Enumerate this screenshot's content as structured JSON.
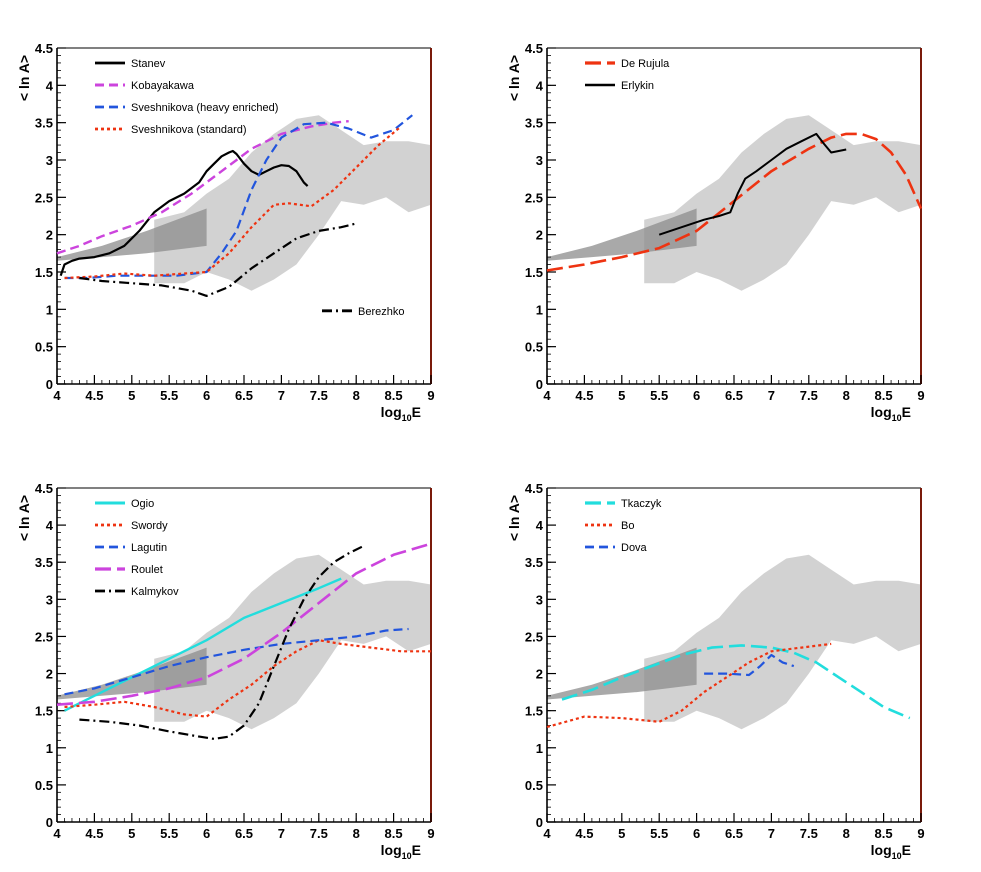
{
  "figure": {
    "panel_count": 4
  },
  "chart_data": [
    {
      "type": "line",
      "panel": "top-left",
      "xlabel_main": "log",
      "xlabel_sub": "10",
      "xlabel_tail": "E",
      "ylabel": "< ln A>",
      "xlim": [
        4,
        9
      ],
      "ylim": [
        0,
        4.5
      ],
      "xticks": [
        "4",
        "4.5",
        "5",
        "5.5",
        "6",
        "6.5",
        "7",
        "7.5",
        "8",
        "8.5",
        "9"
      ],
      "yticks": [
        "0",
        "0.5",
        "1",
        "1.5",
        "2",
        "2.5",
        "3",
        "3.5",
        "4",
        "4.5"
      ],
      "legend_position": "top-left",
      "series": [
        {
          "name": "Stanev",
          "color": "#000000",
          "style": "solid",
          "width": 2.2,
          "x": [
            4.05,
            4.1,
            4.2,
            4.3,
            4.5,
            4.7,
            4.9,
            5.1,
            5.3,
            5.5,
            5.7,
            5.9,
            6.0,
            6.1,
            6.2,
            6.3,
            6.35,
            6.4,
            6.5,
            6.6,
            6.7,
            6.8,
            6.9,
            7.0,
            7.1,
            7.2,
            7.3,
            7.35
          ],
          "y": [
            1.45,
            1.6,
            1.65,
            1.68,
            1.7,
            1.75,
            1.85,
            2.05,
            2.3,
            2.45,
            2.55,
            2.7,
            2.85,
            2.95,
            3.05,
            3.1,
            3.12,
            3.08,
            2.95,
            2.85,
            2.8,
            2.85,
            2.9,
            2.93,
            2.92,
            2.85,
            2.7,
            2.65
          ]
        },
        {
          "name": "Kobayakawa",
          "color": "#cc44dd",
          "style": "dashed",
          "width": 2.4,
          "x": [
            4.0,
            4.3,
            4.6,
            5.0,
            5.4,
            5.8,
            6.2,
            6.6,
            7.0,
            7.4,
            7.7,
            7.9
          ],
          "y": [
            1.75,
            1.85,
            1.98,
            2.12,
            2.3,
            2.55,
            2.85,
            3.15,
            3.35,
            3.45,
            3.5,
            3.52
          ]
        },
        {
          "name": "Sveshnikova (heavy enriched)",
          "color": "#2255dd",
          "style": "dashed",
          "width": 2.2,
          "x": [
            4.1,
            4.4,
            4.8,
            5.2,
            5.6,
            6.0,
            6.2,
            6.4,
            6.6,
            6.8,
            7.0,
            7.3,
            7.6,
            7.9,
            8.2,
            8.5,
            8.75
          ],
          "y": [
            1.42,
            1.42,
            1.45,
            1.45,
            1.45,
            1.5,
            1.75,
            2.05,
            2.6,
            3.0,
            3.3,
            3.48,
            3.5,
            3.42,
            3.3,
            3.4,
            3.6
          ]
        },
        {
          "name": "Sveshnikova (standard)",
          "color": "#ee3311",
          "style": "dotted",
          "width": 2.2,
          "x": [
            4.1,
            4.5,
            4.9,
            5.3,
            5.7,
            6.0,
            6.3,
            6.6,
            6.9,
            7.1,
            7.4,
            7.7,
            8.0,
            8.3,
            8.6
          ],
          "y": [
            1.42,
            1.44,
            1.48,
            1.45,
            1.48,
            1.5,
            1.75,
            2.1,
            2.4,
            2.42,
            2.38,
            2.6,
            2.9,
            3.2,
            3.45
          ]
        },
        {
          "name": "Berezhko",
          "color": "#000000",
          "style": "dashdot",
          "width": 2.2,
          "x": [
            4.3,
            4.6,
            5.0,
            5.4,
            5.8,
            6.0,
            6.3,
            6.6,
            6.9,
            7.2,
            7.5,
            7.8,
            8.0
          ],
          "y": [
            1.42,
            1.38,
            1.35,
            1.32,
            1.25,
            1.18,
            1.3,
            1.55,
            1.75,
            1.95,
            2.05,
            2.1,
            2.15
          ]
        }
      ]
    },
    {
      "type": "line",
      "panel": "top-right",
      "xlabel_main": "log",
      "xlabel_sub": "10",
      "xlabel_tail": "E",
      "ylabel": "< ln A>",
      "xlim": [
        4,
        9
      ],
      "ylim": [
        0,
        4.5
      ],
      "xticks": [
        "4",
        "4.5",
        "5",
        "5.5",
        "6",
        "6.5",
        "7",
        "7.5",
        "8",
        "8.5",
        "9"
      ],
      "yticks": [
        "0",
        "0.5",
        "1",
        "1.5",
        "2",
        "2.5",
        "3",
        "3.5",
        "4",
        "4.5"
      ],
      "legend_position": "top-left",
      "series": [
        {
          "name": "De Rujula",
          "color": "#ee3311",
          "style": "longdash",
          "width": 2.6,
          "x": [
            4.0,
            4.5,
            5.0,
            5.5,
            6.0,
            6.5,
            7.0,
            7.5,
            7.8,
            8.0,
            8.2,
            8.4,
            8.6,
            8.8,
            9.0
          ],
          "y": [
            1.52,
            1.6,
            1.7,
            1.82,
            2.05,
            2.45,
            2.85,
            3.15,
            3.3,
            3.35,
            3.35,
            3.28,
            3.1,
            2.8,
            2.35
          ]
        },
        {
          "name": "Erlykin",
          "color": "#000000",
          "style": "solid",
          "width": 2.0,
          "x": [
            5.5,
            5.8,
            6.1,
            6.3,
            6.45,
            6.55,
            6.65,
            6.8,
            7.0,
            7.2,
            7.4,
            7.6,
            7.7,
            7.8,
            7.9,
            8.0
          ],
          "y": [
            2.0,
            2.1,
            2.2,
            2.25,
            2.3,
            2.55,
            2.75,
            2.85,
            3.0,
            3.15,
            3.25,
            3.35,
            3.22,
            3.1,
            3.12,
            3.14
          ]
        }
      ]
    },
    {
      "type": "line",
      "panel": "bottom-left",
      "xlabel_main": "log",
      "xlabel_sub": "10",
      "xlabel_tail": "E",
      "ylabel": "< ln A>",
      "xlim": [
        4,
        9
      ],
      "ylim": [
        0,
        4.5
      ],
      "xticks": [
        "4",
        "4.5",
        "5",
        "5.5",
        "6",
        "6.5",
        "7",
        "7.5",
        "8",
        "8.5",
        "9"
      ],
      "yticks": [
        "0",
        "0.5",
        "1",
        "1.5",
        "2",
        "2.5",
        "3",
        "3.5",
        "4",
        "4.5"
      ],
      "legend_position": "top-left",
      "series": [
        {
          "name": "Ogio",
          "color": "#22dddd",
          "style": "solid",
          "width": 2.4,
          "x": [
            4.1,
            4.5,
            5.0,
            5.5,
            6.0,
            6.5,
            7.0,
            7.5,
            7.8
          ],
          "y": [
            1.5,
            1.7,
            1.95,
            2.2,
            2.45,
            2.75,
            2.95,
            3.15,
            3.28
          ]
        },
        {
          "name": "Swordy",
          "color": "#ee3311",
          "style": "dotted",
          "width": 2.2,
          "x": [
            4.1,
            4.5,
            4.9,
            5.3,
            5.7,
            6.0,
            6.3,
            6.6,
            6.9,
            7.2,
            7.5,
            7.8,
            8.2,
            8.6,
            9.0
          ],
          "y": [
            1.55,
            1.58,
            1.62,
            1.55,
            1.45,
            1.42,
            1.65,
            1.85,
            2.1,
            2.3,
            2.45,
            2.4,
            2.35,
            2.3,
            2.3
          ]
        },
        {
          "name": "Lagutin",
          "color": "#2255dd",
          "style": "dashed",
          "width": 2.2,
          "x": [
            4.1,
            4.5,
            5.0,
            5.5,
            6.0,
            6.5,
            7.0,
            7.5,
            8.0,
            8.4,
            8.7
          ],
          "y": [
            1.72,
            1.8,
            1.95,
            2.1,
            2.22,
            2.32,
            2.4,
            2.45,
            2.5,
            2.58,
            2.6
          ]
        },
        {
          "name": "Roulet",
          "color": "#cc44dd",
          "style": "longdash",
          "width": 2.6,
          "x": [
            4.0,
            4.5,
            5.0,
            5.5,
            6.0,
            6.5,
            7.0,
            7.5,
            8.0,
            8.5,
            9.0
          ],
          "y": [
            1.58,
            1.62,
            1.7,
            1.8,
            1.95,
            2.2,
            2.55,
            2.95,
            3.35,
            3.6,
            3.75
          ]
        },
        {
          "name": "Kalmykov",
          "color": "#000000",
          "style": "dashdot",
          "width": 2.2,
          "x": [
            4.3,
            4.7,
            5.1,
            5.5,
            5.9,
            6.1,
            6.3,
            6.5,
            6.7,
            6.9,
            7.1,
            7.3,
            7.5,
            7.7,
            7.9,
            8.1
          ],
          "y": [
            1.38,
            1.35,
            1.3,
            1.22,
            1.15,
            1.12,
            1.15,
            1.3,
            1.6,
            2.1,
            2.6,
            3.0,
            3.3,
            3.5,
            3.62,
            3.72
          ]
        }
      ]
    },
    {
      "type": "line",
      "panel": "bottom-right",
      "xlabel_main": "log",
      "xlabel_sub": "10",
      "xlabel_tail": "E",
      "ylabel": "< ln A>",
      "xlim": [
        4,
        9
      ],
      "ylim": [
        0,
        4.5
      ],
      "xticks": [
        "4",
        "4.5",
        "5",
        "5.5",
        "6",
        "6.5",
        "7",
        "7.5",
        "8",
        "8.5",
        "9"
      ],
      "yticks": [
        "0",
        "0.5",
        "1",
        "1.5",
        "2",
        "2.5",
        "3",
        "3.5",
        "4",
        "4.5"
      ],
      "legend_position": "top-left",
      "series": [
        {
          "name": "Tkaczyk",
          "color": "#22dddd",
          "style": "longdash",
          "width": 2.6,
          "x": [
            4.2,
            4.6,
            5.0,
            5.4,
            5.8,
            6.2,
            6.6,
            7.0,
            7.3,
            7.6,
            7.9,
            8.2,
            8.5,
            8.85
          ],
          "y": [
            1.65,
            1.78,
            1.95,
            2.1,
            2.25,
            2.35,
            2.38,
            2.35,
            2.28,
            2.15,
            1.95,
            1.75,
            1.55,
            1.4
          ]
        },
        {
          "name": "Bo",
          "color": "#ee3311",
          "style": "dotted",
          "width": 2.2,
          "x": [
            4.0,
            4.5,
            5.0,
            5.5,
            5.8,
            6.1,
            6.4,
            6.7,
            7.0,
            7.4,
            7.8
          ],
          "y": [
            1.28,
            1.42,
            1.4,
            1.35,
            1.5,
            1.75,
            1.95,
            2.15,
            2.3,
            2.35,
            2.4
          ]
        },
        {
          "name": "Dova",
          "color": "#2255dd",
          "style": "dashed",
          "width": 2.2,
          "x": [
            6.1,
            6.4,
            6.7,
            6.85,
            7.0,
            7.15,
            7.3
          ],
          "y": [
            2.0,
            2.0,
            1.98,
            2.1,
            2.25,
            2.15,
            2.1
          ]
        }
      ]
    }
  ]
}
